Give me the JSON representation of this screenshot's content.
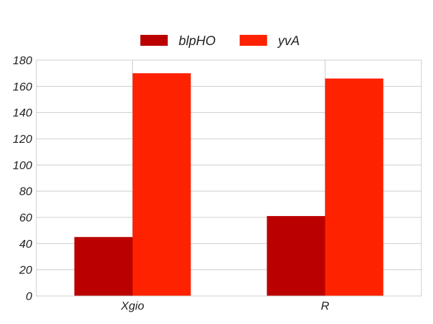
{
  "chart_data": {
    "type": "bar",
    "categories": [
      "Xgio",
      "R"
    ],
    "series": [
      {
        "name": "blpHO",
        "values": [
          45,
          61
        ],
        "color": "#bb0000"
      },
      {
        "name": "yvA",
        "values": [
          170,
          166
        ],
        "color": "#ff2200"
      }
    ],
    "ylim": [
      0,
      180
    ],
    "yticks": [
      0,
      20,
      40,
      60,
      80,
      100,
      120,
      140,
      160,
      180
    ],
    "grid": true,
    "legend_position": "top-center",
    "grid_color": "#cccccc",
    "title": "",
    "xlabel": "",
    "ylabel": ""
  }
}
